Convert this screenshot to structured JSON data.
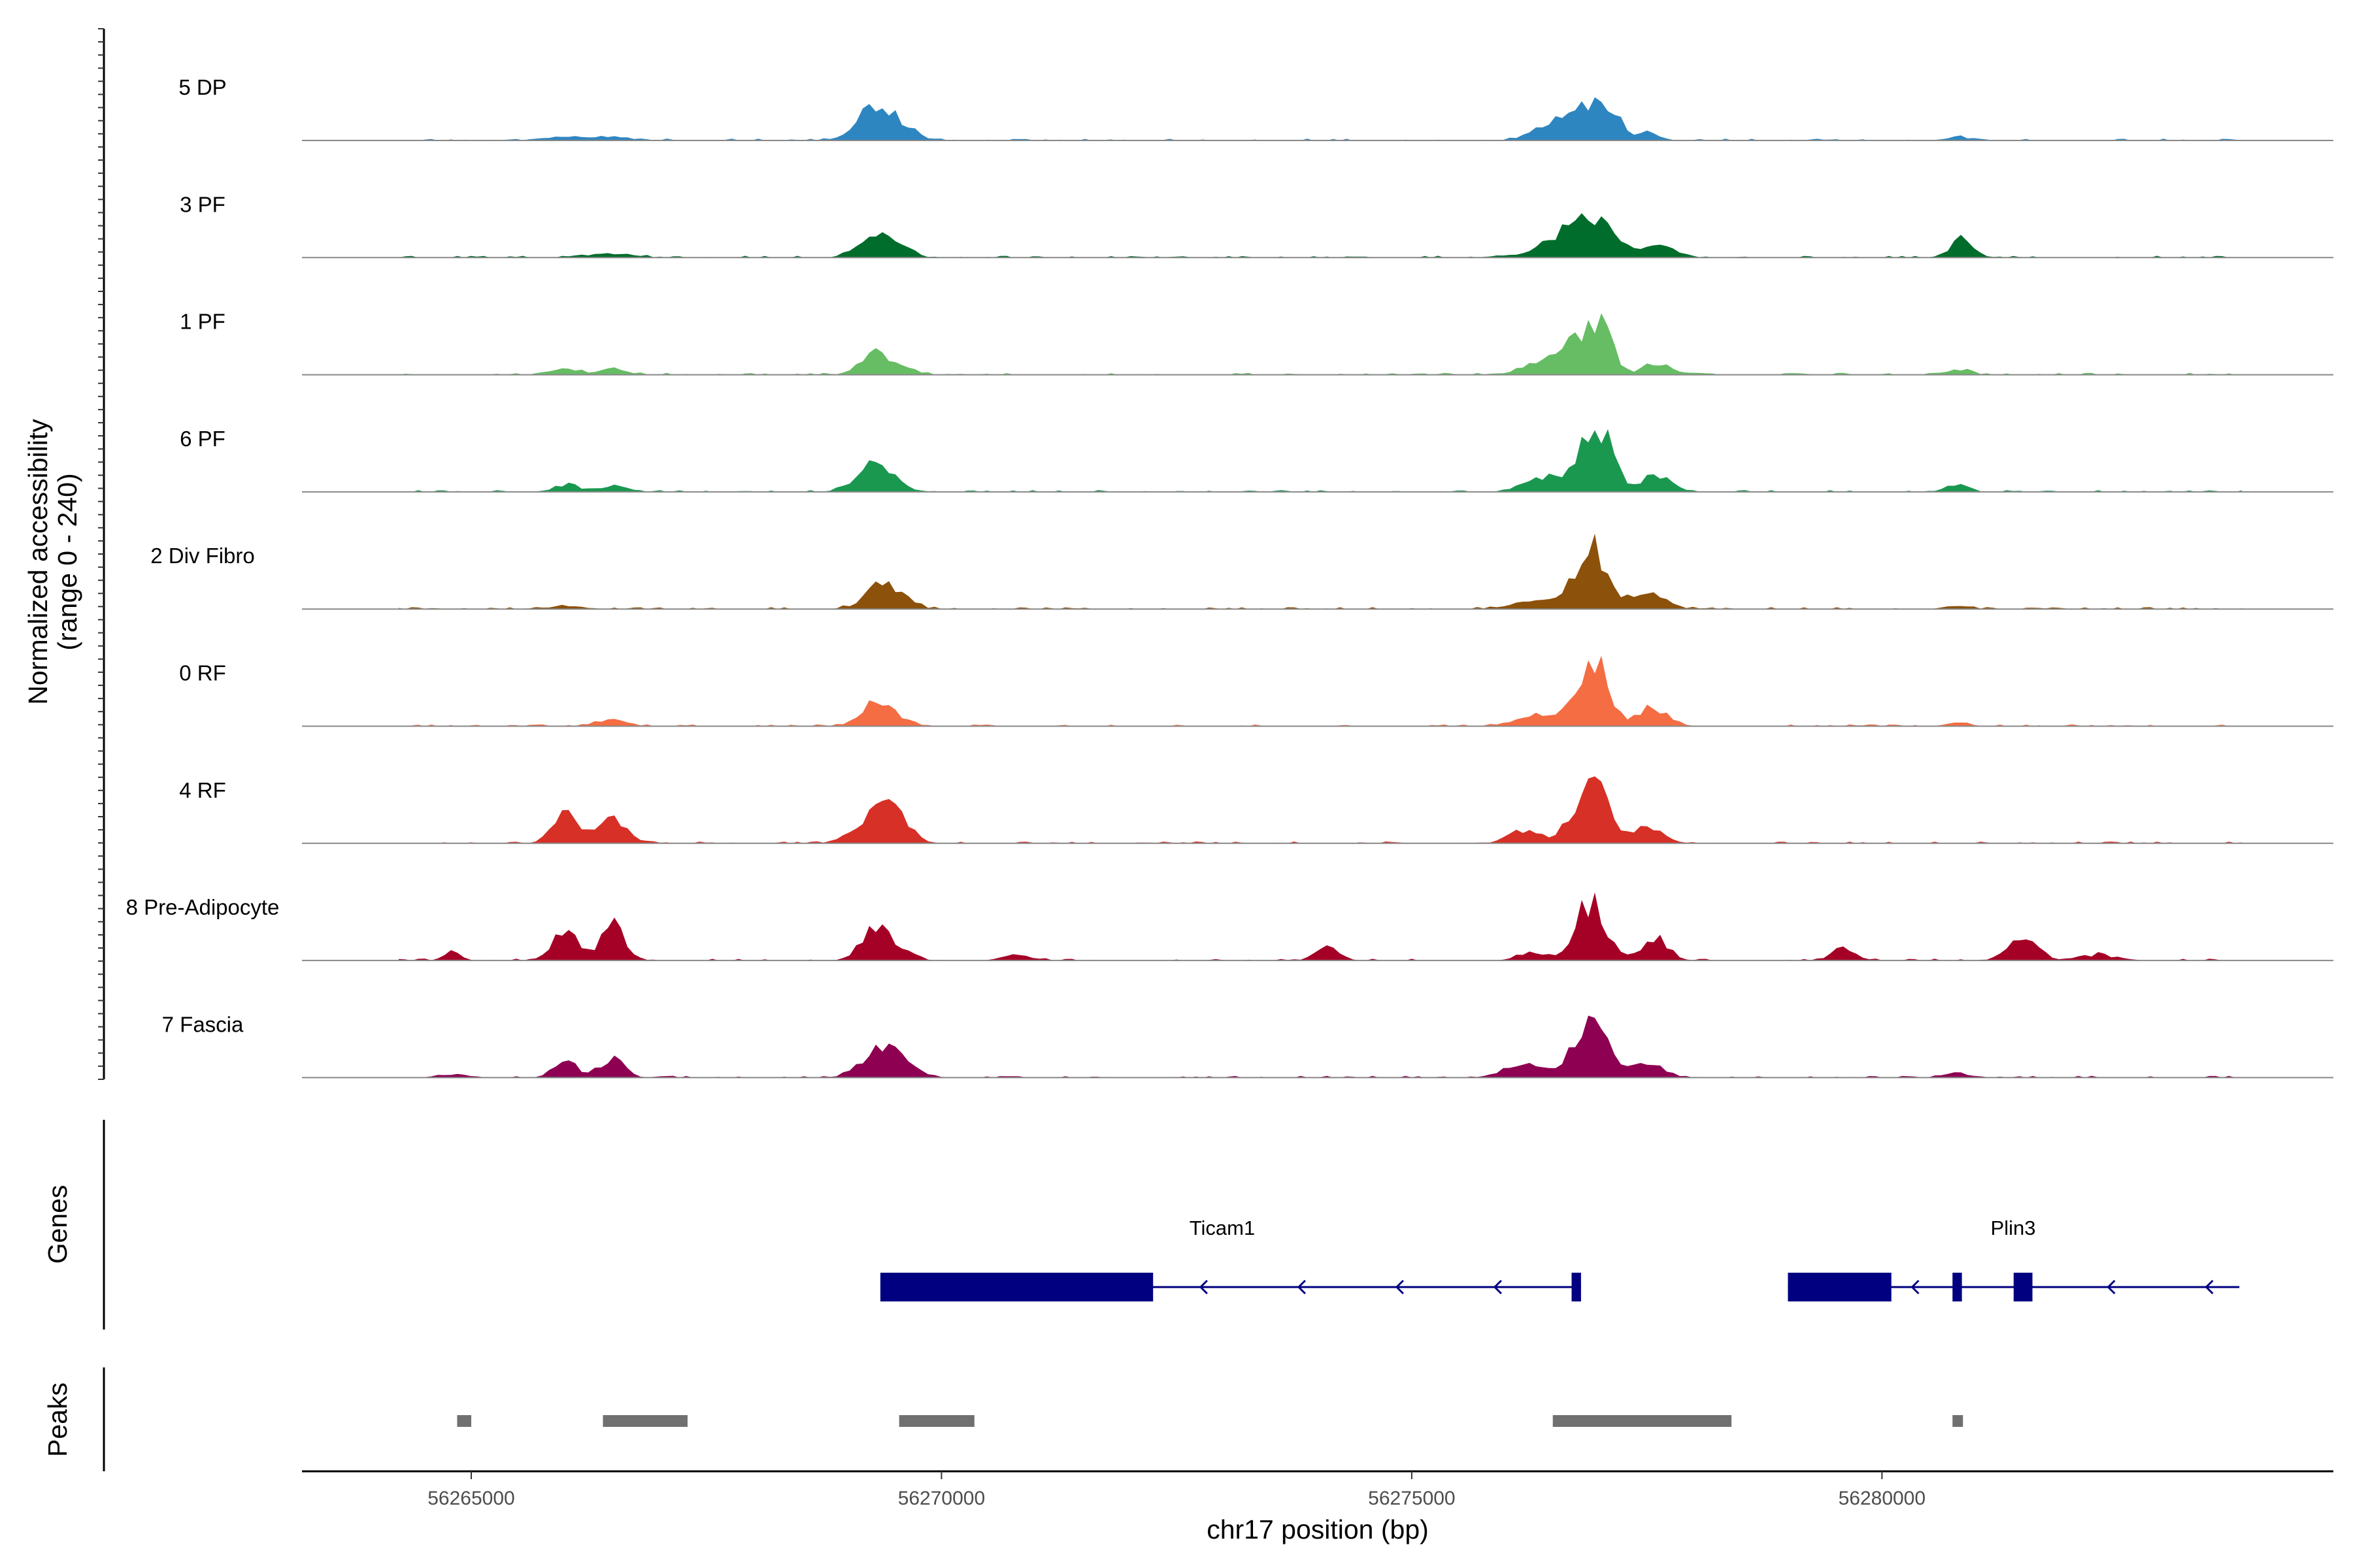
{
  "chart_data": {
    "type": "area",
    "title": "",
    "xlabel": "chr17 position (bp)",
    "ylabel": [
      "Normalized accessibility",
      "(range 0 - 240)"
    ],
    "y_range": [
      0,
      240
    ],
    "xlim": [
      56263200,
      56284800
    ],
    "x_ticks": [
      56265000,
      56270000,
      56275000,
      56280000
    ],
    "x_tick_labels": [
      "56265000",
      "56270000",
      "56275000",
      "56280000"
    ],
    "grid": false,
    "baseline_color": "#888888",
    "tracks": [
      {
        "name": "5 DP",
        "color": "#2E86C1",
        "peaks": [
          [
            56266000,
            8,
            200
          ],
          [
            56266500,
            8,
            200
          ],
          [
            56269300,
            80,
            180
          ],
          [
            56269600,
            20,
            150
          ],
          [
            56276500,
            40,
            200
          ],
          [
            56276900,
            75,
            160
          ],
          [
            56277150,
            45,
            80
          ],
          [
            56277500,
            20,
            120
          ],
          [
            56280800,
            8,
            120
          ]
        ]
      },
      {
        "name": "3 PF",
        "color": "#006D2C",
        "peaks": [
          [
            56266500,
            10,
            200
          ],
          [
            56269300,
            48,
            170
          ],
          [
            56269600,
            18,
            120
          ],
          [
            56276500,
            35,
            220
          ],
          [
            56276750,
            58,
            120
          ],
          [
            56277050,
            92,
            140
          ],
          [
            56277600,
            28,
            180
          ],
          [
            56280850,
            40,
            120
          ]
        ]
      },
      {
        "name": "1 PF",
        "color": "#66BD63",
        "peaks": [
          [
            56266000,
            12,
            150
          ],
          [
            56266500,
            12,
            150
          ],
          [
            56269300,
            58,
            150
          ],
          [
            56269650,
            15,
            100
          ],
          [
            56276400,
            30,
            200
          ],
          [
            56276800,
            85,
            150
          ],
          [
            56277050,
            105,
            100
          ],
          [
            56277600,
            25,
            150
          ],
          [
            56280800,
            12,
            120
          ]
        ]
      },
      {
        "name": "6 PF",
        "color": "#1A9850",
        "peaks": [
          [
            56266000,
            15,
            130
          ],
          [
            56266500,
            12,
            130
          ],
          [
            56269300,
            68,
            190
          ],
          [
            56276400,
            35,
            200
          ],
          [
            56276850,
            90,
            140
          ],
          [
            56277050,
            100,
            130
          ],
          [
            56277600,
            35,
            160
          ],
          [
            56280800,
            15,
            120
          ]
        ]
      },
      {
        "name": "2 Div Fibro",
        "color": "#8C510A",
        "peaks": [
          [
            56266000,
            8,
            150
          ],
          [
            56269400,
            58,
            190
          ],
          [
            56276300,
            20,
            220
          ],
          [
            56276750,
            45,
            120
          ],
          [
            56276950,
            120,
            140
          ],
          [
            56277500,
            38,
            180
          ],
          [
            56280800,
            8,
            120
          ]
        ]
      },
      {
        "name": "0 RF",
        "color": "#F46D43",
        "peaks": [
          [
            56266500,
            15,
            150
          ],
          [
            56269300,
            55,
            150
          ],
          [
            56269600,
            12,
            120
          ],
          [
            56276350,
            25,
            220
          ],
          [
            56276800,
            80,
            120
          ],
          [
            56277000,
            115,
            120
          ],
          [
            56277550,
            42,
            160
          ],
          [
            56280800,
            8,
            120
          ]
        ]
      },
      {
        "name": "4 RF",
        "color": "#D73027",
        "peaks": [
          [
            56266000,
            68,
            130
          ],
          [
            56266500,
            48,
            160
          ],
          [
            56269300,
            68,
            200
          ],
          [
            56269550,
            38,
            130
          ],
          [
            56276200,
            30,
            160
          ],
          [
            56276700,
            42,
            120
          ],
          [
            56276950,
            120,
            150
          ],
          [
            56277500,
            38,
            160
          ]
        ]
      },
      {
        "name": "8 Pre-Adipocyte",
        "color": "#A50026",
        "peaks": [
          [
            56264800,
            18,
            80
          ],
          [
            56266000,
            72,
            120
          ],
          [
            56266500,
            78,
            130
          ],
          [
            56269300,
            72,
            150
          ],
          [
            56269600,
            20,
            120
          ],
          [
            56270800,
            12,
            150
          ],
          [
            56274100,
            30,
            120
          ],
          [
            56276300,
            18,
            150
          ],
          [
            56276900,
            130,
            160
          ],
          [
            56277600,
            48,
            130
          ],
          [
            56281500,
            48,
            150
          ],
          [
            56279600,
            25,
            130
          ],
          [
            56282300,
            12,
            200
          ]
        ]
      },
      {
        "name": "7 Fascia",
        "color": "#8E0152",
        "peaks": [
          [
            56264800,
            8,
            150
          ],
          [
            56266000,
            38,
            120
          ],
          [
            56266500,
            40,
            130
          ],
          [
            56269400,
            65,
            220
          ],
          [
            56276200,
            25,
            220
          ],
          [
            56276700,
            38,
            120
          ],
          [
            56276950,
            135,
            140
          ],
          [
            56277500,
            35,
            160
          ],
          [
            56280800,
            12,
            120
          ]
        ]
      }
    ],
    "genes_panel_label": "Genes",
    "genes": [
      {
        "name": "Ticam1",
        "strand": "-",
        "color": "#000080",
        "start": 56269350,
        "end": 56276800,
        "exons": [
          [
            56269350,
            56272250
          ],
          [
            56276700,
            56276800
          ]
        ]
      },
      {
        "name": "Plin3",
        "strand": "-",
        "color": "#000080",
        "start": 56279000,
        "end": 56283800,
        "exons": [
          [
            56279000,
            56280100
          ],
          [
            56280750,
            56280850
          ],
          [
            56281400,
            56281600
          ]
        ]
      }
    ],
    "peaks_panel_label": "Peaks",
    "peaks_color": "#707070",
    "peak_regions": [
      [
        56264850,
        56265000
      ],
      [
        56266400,
        56267300
      ],
      [
        56269550,
        56270350
      ],
      [
        56276500,
        56278400
      ],
      [
        56280750,
        56280850
      ]
    ]
  }
}
